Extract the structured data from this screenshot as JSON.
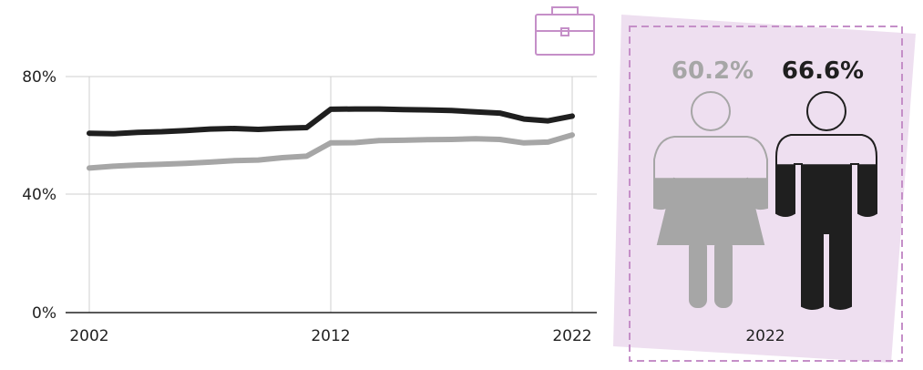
{
  "chart_data": {
    "type": "line",
    "x": [
      2002,
      2003,
      2004,
      2005,
      2006,
      2007,
      2008,
      2009,
      2010,
      2011,
      2012,
      2013,
      2014,
      2015,
      2016,
      2017,
      2018,
      2019,
      2020,
      2021,
      2022
    ],
    "series": [
      {
        "key": "men",
        "color": "#1f1f1f",
        "values": [
          60.8,
          60.6,
          61.1,
          61.3,
          61.7,
          62.2,
          62.4,
          62.1,
          62.5,
          62.7,
          68.9,
          69.0,
          69.0,
          68.8,
          68.7,
          68.5,
          68.0,
          67.6,
          65.6,
          65.0,
          66.6
        ]
      },
      {
        "key": "women",
        "color": "#a6a6a6",
        "values": [
          49.0,
          49.6,
          50.0,
          50.3,
          50.6,
          51.0,
          51.5,
          51.7,
          52.5,
          53.0,
          57.5,
          57.6,
          58.3,
          58.4,
          58.6,
          58.7,
          58.9,
          58.7,
          57.5,
          57.8,
          60.2
        ]
      }
    ],
    "x_ticks": [
      "2002",
      "2012",
      "2022"
    ],
    "y_ticks": [
      "80%",
      "40%",
      "0%"
    ],
    "ylim": [
      0,
      80
    ],
    "grid": true,
    "title": "",
    "xlabel": "",
    "ylabel": ""
  },
  "panel": {
    "year": "2022",
    "women_pct": "60.2%",
    "men_pct": "66.6%",
    "women_value": 60.2,
    "men_value": 66.6,
    "colors": {
      "panel_bg": "#eedff0",
      "border": "#c58fc8",
      "women": "#a6a6a6",
      "men": "#1f1f1f"
    }
  },
  "icons": [
    "briefcase-icon",
    "woman-figure-icon",
    "man-figure-icon"
  ]
}
